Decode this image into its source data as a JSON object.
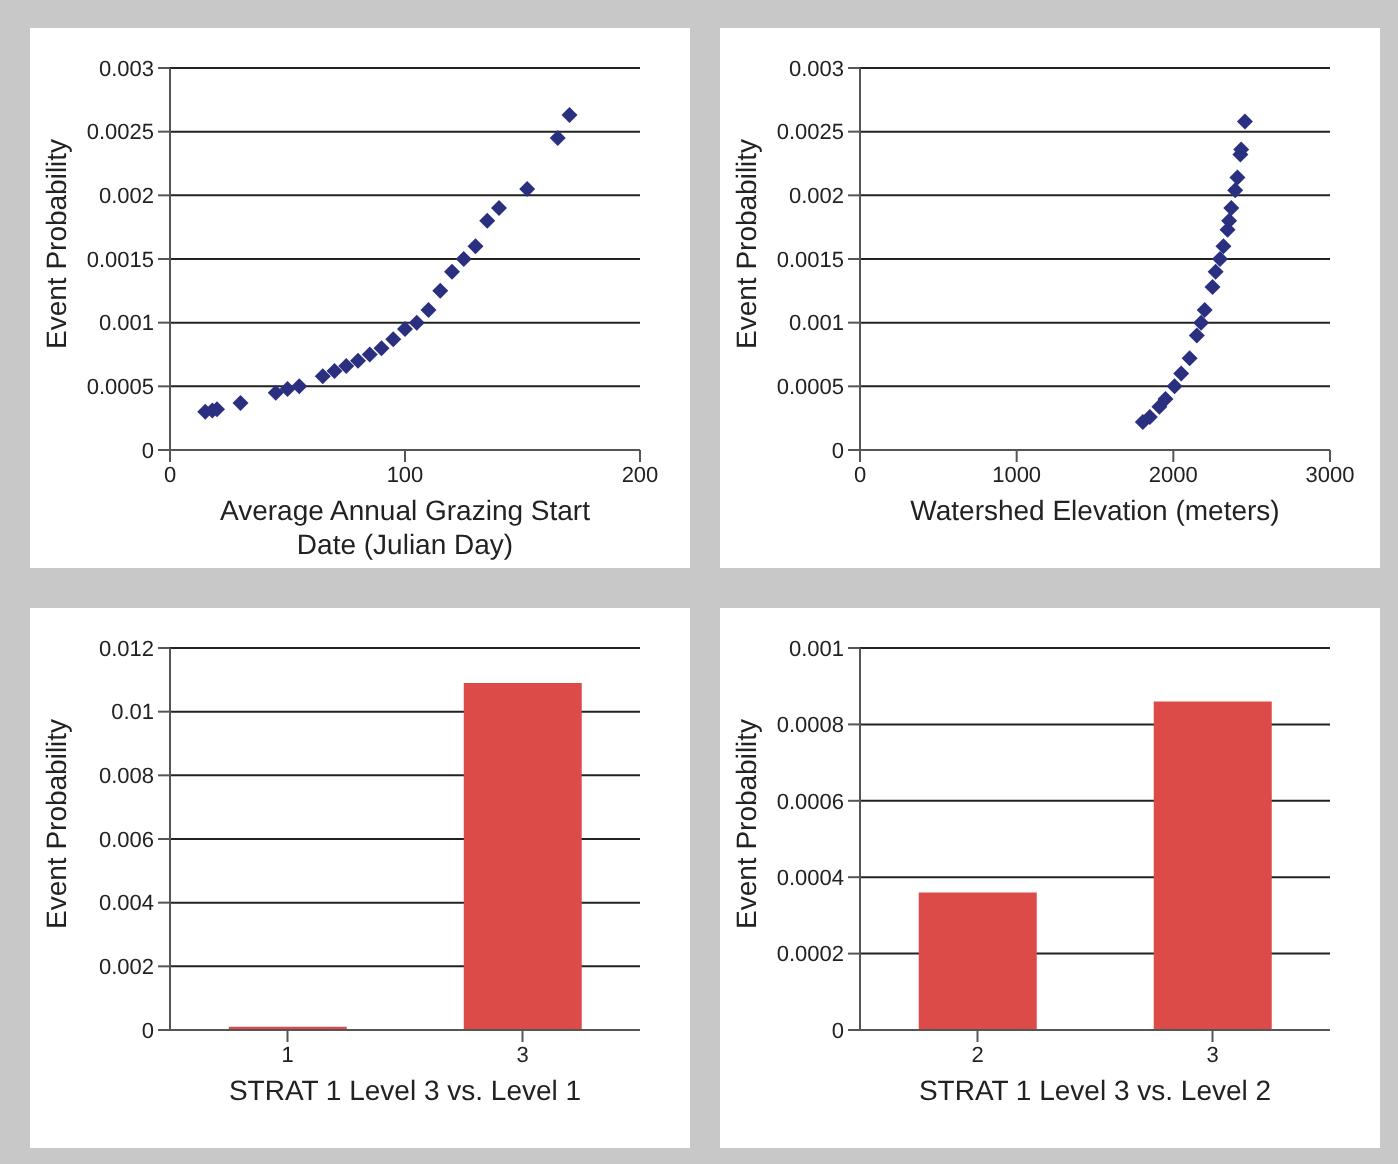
{
  "chart_data": [
    {
      "type": "scatter",
      "xlabel": "Average Annual Grazing Start Date (Julian Day)",
      "ylabel": "Event Probability",
      "marker": "diamond",
      "grid": "y",
      "xlim": [
        0,
        200
      ],
      "xticks": [
        0,
        100,
        200
      ],
      "ylim": [
        0,
        0.003
      ],
      "yticks": [
        0,
        0.0005,
        0.001,
        0.0015,
        0.002,
        0.0025,
        0.003
      ],
      "series": [
        {
          "color": "#2b2f7f",
          "x": [
            15,
            18,
            20,
            30,
            45,
            50,
            55,
            65,
            70,
            75,
            80,
            85,
            90,
            95,
            100,
            105,
            110,
            115,
            120,
            125,
            130,
            135,
            140,
            152,
            165,
            170
          ],
          "values": [
            0.0003,
            0.00031,
            0.00032,
            0.00037,
            0.00045,
            0.00048,
            0.0005,
            0.00058,
            0.00062,
            0.00066,
            0.0007,
            0.00075,
            0.0008,
            0.00087,
            0.00095,
            0.001,
            0.0011,
            0.00125,
            0.0014,
            0.0015,
            0.0016,
            0.0018,
            0.0019,
            0.00205,
            0.00245,
            0.00263
          ]
        }
      ]
    },
    {
      "type": "scatter",
      "xlabel": "Watershed Elevation (meters)",
      "ylabel": "Event Probability",
      "marker": "diamond",
      "grid": "y",
      "xlim": [
        0,
        3000
      ],
      "xticks": [
        0,
        1000,
        2000,
        3000
      ],
      "ylim": [
        0,
        0.003
      ],
      "yticks": [
        0,
        0.0005,
        0.001,
        0.0015,
        0.002,
        0.0025,
        0.003
      ],
      "series": [
        {
          "color": "#2b2f7f",
          "x": [
            1805,
            1850,
            1911,
            1950,
            2008,
            2050,
            2104,
            2150,
            2177,
            2200,
            2250,
            2270,
            2298,
            2320,
            2346,
            2356,
            2370,
            2395,
            2409,
            2428,
            2433,
            2457
          ],
          "values": [
            0.00022,
            0.00026,
            0.00034,
            0.0004,
            0.0005,
            0.0006,
            0.00072,
            0.0009,
            0.001,
            0.0011,
            0.00128,
            0.0014,
            0.0015,
            0.0016,
            0.00173,
            0.0018,
            0.0019,
            0.00204,
            0.00214,
            0.00232,
            0.00236,
            0.00258
          ]
        }
      ]
    },
    {
      "type": "bar",
      "xlabel": "STRAT 1 Level 3 vs. Level 1",
      "ylabel": "Event Probability",
      "grid": "y",
      "categories": [
        "1",
        "3"
      ],
      "ylim": [
        0,
        0.012
      ],
      "yticks": [
        0,
        0.002,
        0.004,
        0.006,
        0.008,
        0.01,
        0.012
      ],
      "series": [
        {
          "color": "#dc4b48",
          "values": [
            0.0001,
            0.0109
          ]
        }
      ]
    },
    {
      "type": "bar",
      "xlabel": "STRAT 1 Level 3 vs. Level 2",
      "ylabel": "Event Probability",
      "grid": "y",
      "categories": [
        "2",
        "3"
      ],
      "ylim": [
        0,
        0.001
      ],
      "yticks": [
        0,
        0.0002,
        0.0004,
        0.0006,
        0.0008,
        0.001
      ],
      "series": [
        {
          "color": "#dc4b48",
          "values": [
            0.00036,
            0.00086
          ]
        }
      ]
    }
  ]
}
